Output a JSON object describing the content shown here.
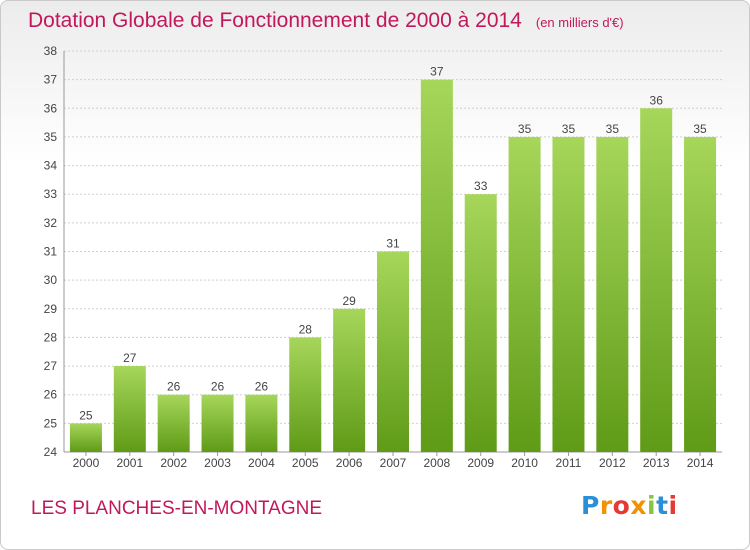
{
  "title": "Dotation Globale de Fonctionnement de 2000 à 2014",
  "unit": "(en milliers d'€)",
  "commune": "LES PLANCHES-EN-MONTAGNE",
  "logo": {
    "p": "P",
    "r": "r",
    "o": "o",
    "x": "x",
    "i1": "i",
    "t": "t",
    "i2": "i"
  },
  "colors": {
    "bar_top": "#a6d65a",
    "bar_bottom": "#5f9b17",
    "title": "#c2185b"
  },
  "chart_data": {
    "type": "bar",
    "categories": [
      "2000",
      "2001",
      "2002",
      "2003",
      "2004",
      "2005",
      "2006",
      "2007",
      "2008",
      "2009",
      "2010",
      "2011",
      "2012",
      "2013",
      "2014"
    ],
    "values": [
      25,
      27,
      26,
      26,
      26,
      28,
      29,
      31,
      37,
      33,
      35,
      35,
      35,
      36,
      35
    ],
    "ylim": [
      24,
      38
    ],
    "yticks": [
      24,
      25,
      26,
      27,
      28,
      29,
      30,
      31,
      32,
      33,
      34,
      35,
      36,
      37,
      38
    ],
    "grid": true
  }
}
